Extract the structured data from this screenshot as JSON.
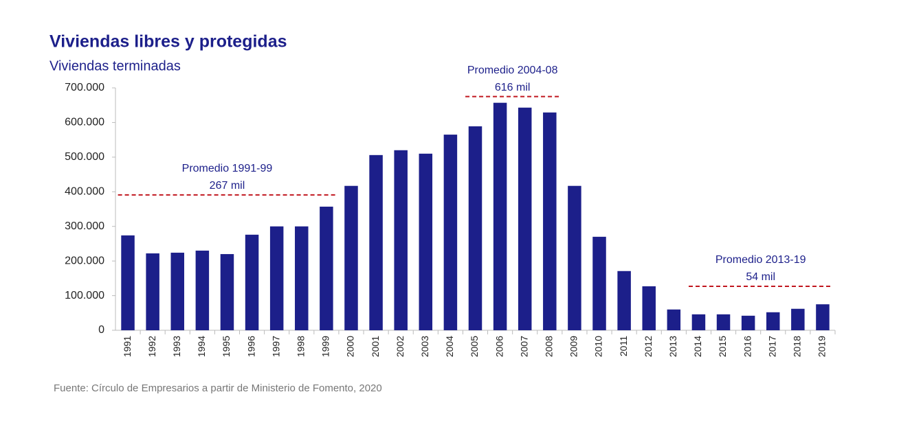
{
  "chart_data": {
    "type": "bar",
    "title": "Viviendas libres y protegidas",
    "subtitle": "Viviendas terminadas",
    "source": "Fuente: Círculo de Empresarios a partir de Ministerio de Fomento, 2020",
    "categories": [
      "1991",
      "1992",
      "1993",
      "1994",
      "1995",
      "1996",
      "1997",
      "1998",
      "1999",
      "2000",
      "2001",
      "2002",
      "2003",
      "2004",
      "2005",
      "2006",
      "2007",
      "2008",
      "2009",
      "2010",
      "2011",
      "2012",
      "2013",
      "2014",
      "2015",
      "2016",
      "2017",
      "2018",
      "2019"
    ],
    "values": [
      274000,
      222000,
      224000,
      230000,
      220000,
      276000,
      300000,
      300000,
      357000,
      417000,
      506000,
      520000,
      510000,
      565000,
      589000,
      657000,
      643000,
      629000,
      417000,
      270000,
      171000,
      127000,
      60000,
      46000,
      46000,
      42000,
      52000,
      62000,
      75000
    ],
    "color": "#1c1f8a",
    "ylim": [
      0,
      700000
    ],
    "yticks": [
      0,
      {
        "value": 100000,
        "label": "100.000"
      },
      {
        "value": 200000,
        "label": "200.000"
      },
      {
        "value": 300000,
        "label": "300.000"
      },
      {
        "value": 400000,
        "label": "400.000"
      },
      {
        "value": 500000,
        "label": "500.000"
      },
      {
        "value": 600000,
        "label": "600.000"
      },
      {
        "value": 700000,
        "label": "700.000"
      }
    ],
    "annotations": [
      {
        "text": [
          "Promedio 1991-99",
          "267 mil"
        ],
        "y": 391000,
        "x": [
          "1991",
          "1999"
        ],
        "color": "#c0161e"
      },
      {
        "text": [
          "Promedio 2004-08",
          "616 mil"
        ],
        "y": 675000,
        "x": [
          "2005",
          "2008"
        ],
        "color": "#c0161e"
      },
      {
        "text": [
          "Promedio 2013-19",
          "54 mil"
        ],
        "y": 127000,
        "x": [
          "2014",
          "2019"
        ],
        "color": "#c0161e"
      }
    ]
  }
}
